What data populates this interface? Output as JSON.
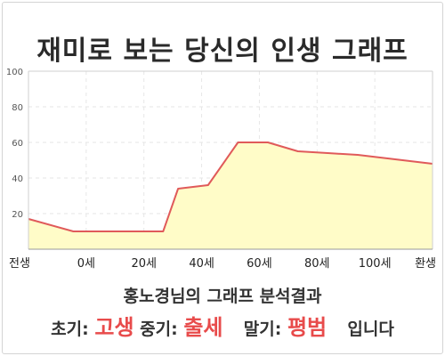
{
  "header": {
    "title": "재미로 보는 당신의 인생 그래프"
  },
  "result": {
    "subtitle": "홍노경님의 그래프 분석결과",
    "early_label": "초기:",
    "early_value": "고생",
    "mid_label": "중기:",
    "mid_value": "출세",
    "late_label": "말기:",
    "late_value": "평범",
    "ending": "입니다"
  },
  "colors": {
    "line": "#e05a5a",
    "fill": "#fffcc8",
    "highlight": "#e84b4b"
  },
  "chart_data": {
    "type": "area",
    "title": "재미로 보는 당신의 인생 그래프",
    "xlabel": "",
    "ylabel": "",
    "x_ticks": [
      "전생",
      "0세",
      "20세",
      "40세",
      "60세",
      "80세",
      "100세",
      "환생"
    ],
    "x_range": [
      -15,
      120
    ],
    "ylim": [
      0,
      100
    ],
    "y_ticks": [
      20,
      40,
      60,
      80,
      100
    ],
    "grid": true,
    "series": [
      {
        "x": [
          -15,
          0,
          10,
          20,
          30,
          35,
          45,
          55,
          65,
          75,
          85,
          95,
          105,
          120
        ],
        "y": [
          17,
          10,
          10,
          10,
          10,
          34,
          36,
          60,
          60,
          55,
          54,
          53,
          51,
          48
        ]
      }
    ]
  }
}
